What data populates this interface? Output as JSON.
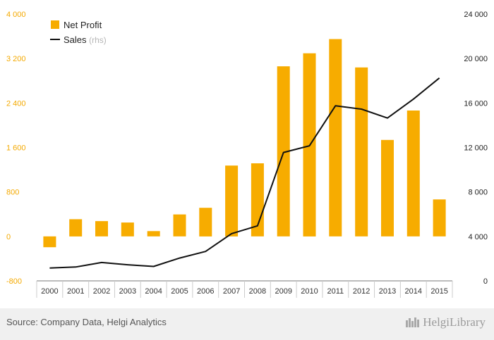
{
  "chart_data": {
    "type": "bar",
    "categories": [
      "2000",
      "2001",
      "2002",
      "2003",
      "2004",
      "2005",
      "2006",
      "2007",
      "2008",
      "2009",
      "2010",
      "2011",
      "2012",
      "2013",
      "2014",
      "2015"
    ],
    "series": [
      {
        "name": "Net Profit",
        "type": "bar",
        "axis": "left",
        "color": "#f7ac00",
        "values": [
          -195,
          310,
          275,
          250,
          95,
          395,
          515,
          1275,
          1315,
          3060,
          3295,
          3550,
          3040,
          1735,
          2265,
          665
        ]
      },
      {
        "name": "Sales",
        "name_suffix": "(rhs)",
        "type": "line",
        "axis": "right",
        "color": "#111111",
        "values": [
          1150,
          1250,
          1650,
          1450,
          1300,
          2050,
          2650,
          4250,
          4950,
          11550,
          12150,
          15750,
          15450,
          14650,
          16350,
          18250
        ]
      }
    ],
    "y_left": {
      "min": -800,
      "max": 4000,
      "ticks": [
        "4 000",
        "3 200",
        "2 400",
        "1 600",
        "800",
        "0",
        "-800"
      ],
      "color": "#f4a900"
    },
    "y_right": {
      "min": 0,
      "max": 24000,
      "ticks": [
        "24 000",
        "20 000",
        "16 000",
        "12 000",
        "8 000",
        "4 000",
        "0"
      ]
    },
    "legend_position": "top-left",
    "grid": false
  },
  "footer": {
    "source": "Source: Company Data, Helgi Analytics",
    "brand": "HelgiLibrary",
    "brand_icon": "helgi-library-logo-icon"
  }
}
